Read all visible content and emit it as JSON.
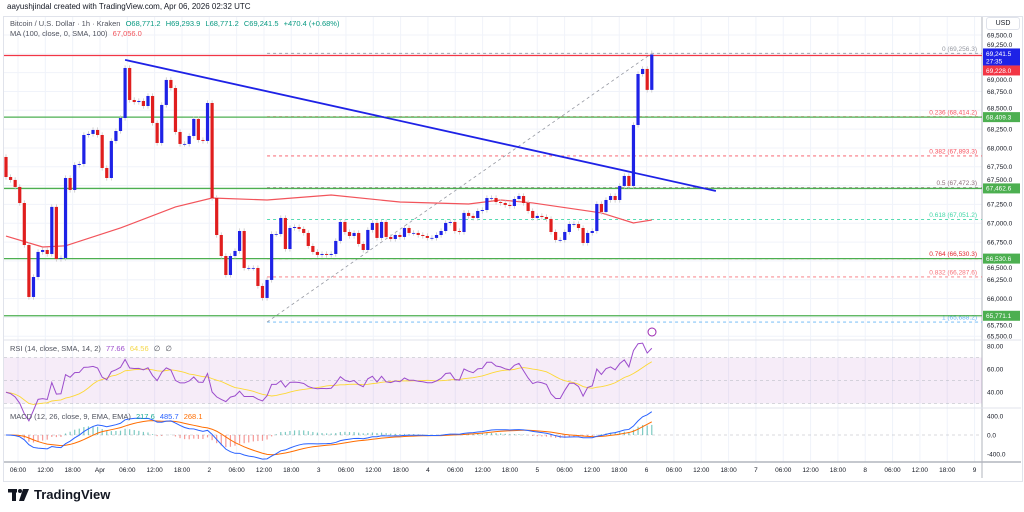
{
  "header": {
    "credit": "aayushjindal created with TradingView.com, Apr 06, 2026 02:32 UTC"
  },
  "legend": {
    "symbol": "Bitcoin / U.S. Dollar · 1h · Kraken",
    "open": "O68,771.2",
    "high": "H69,293.9",
    "low": "L68,771.2",
    "close": "C69,241.5",
    "change": "+470.4 (+0.68%)",
    "ma_label": "MA (100, close, 0, SMA, 100)",
    "ma_value": "67,056.0",
    "rsi_label": "RSI (14, close, SMA, 14, 2)",
    "rsi_value": "77.66",
    "rsi_sma": "64.56",
    "rsi_extra1": "∅",
    "rsi_extra2": "∅",
    "macd_label": "MACD (12, 26, close, 9, EMA, EMA)",
    "macd_hist": "217.6",
    "macd_value": "485.7",
    "macd_signal": "268.1"
  },
  "currency": "USD",
  "logo": "TradingView",
  "colors": {
    "up": "#1e22e6",
    "down": "#e01e1e",
    "ma": "#f2545b",
    "trendline": "#1e22e6",
    "support": "#4caf50",
    "resistance": "#f23645",
    "rsi": "#9c4dcc",
    "rsi_sma": "#fdd835",
    "macd": "#2962ff",
    "signal": "#ff6d00"
  },
  "chart_data": {
    "type": "candlestick",
    "interval": "1h",
    "first_open": 67880,
    "closes": [
      67614,
      67575,
      67482,
      67269,
      66711,
      66021,
      66286,
      66619,
      66645,
      66592,
      67217,
      66526,
      66539,
      67601,
      67442,
      67774,
      67787,
      68172,
      68186,
      68239,
      68172,
      67734,
      67601,
      68093,
      68225,
      68398,
      69062,
      68637,
      68610,
      68624,
      68557,
      68690,
      68332,
      68066,
      68571,
      68903,
      68796,
      68212,
      68053,
      68053,
      68159,
      68385,
      68106,
      68093,
      68597,
      67335,
      66844,
      66565,
      66313,
      66565,
      66632,
      66897,
      66406,
      66406,
      66406,
      66167,
      66008,
      66247,
      66857,
      66857,
      67070,
      66658,
      66937,
      66950,
      66924,
      66871,
      66698,
      66619,
      66579,
      66592,
      66579,
      66592,
      66765,
      67017,
      66884,
      66831,
      66871,
      66725,
      66645,
      66911,
      67004,
      66805,
      67017,
      66818,
      66791,
      66844,
      66818,
      66937,
      66871,
      66871,
      66844,
      66831,
      66805,
      66805,
      66844,
      66897,
      67004,
      67017,
      66897,
      66884,
      67137,
      67097,
      67070,
      67163,
      67176,
      67335,
      67335,
      67282,
      67269,
      67243,
      67229,
      67322,
      67362,
      67269,
      67163,
      67070,
      67097,
      67083,
      67057,
      66884,
      66778,
      66778,
      66884,
      66990,
      66990,
      66937,
      66738,
      66871,
      66897,
      67256,
      67150,
      67309,
      67362,
      67309,
      67495,
      67628,
      67495,
      68305,
      68982,
      69049,
      68771.2,
      69241.5
    ],
    "last_high": 69293.9,
    "ma100_points": [
      [
        0,
        66830
      ],
      [
        8,
        66685
      ],
      [
        13,
        66700
      ],
      [
        25,
        66937
      ],
      [
        37,
        67217
      ],
      [
        45,
        67335
      ],
      [
        57,
        67309
      ],
      [
        71,
        67375
      ],
      [
        86,
        67282
      ],
      [
        101,
        67256
      ],
      [
        108,
        67309
      ],
      [
        115,
        67270
      ],
      [
        130,
        67137
      ],
      [
        137,
        67004
      ],
      [
        141,
        67043
      ]
    ],
    "trendline": {
      "start": [
        26,
        69170
      ],
      "end": [
        155,
        67429
      ]
    },
    "fib_anchor": {
      "start": [
        57,
        65688.2
      ],
      "end": [
        141,
        69256.3
      ]
    },
    "fib_levels": [
      {
        "label": "0 (69,256.3)",
        "value": 69256.3,
        "color": "#9598a1"
      },
      {
        "label": "0.236 (68,414.2)",
        "value": 68414.2,
        "color": "#f7525f"
      },
      {
        "label": "0.382 (67,893.3)",
        "value": 67893.3,
        "color": "#f7525f"
      },
      {
        "label": "0.5 (67,472.3)",
        "value": 67472.3,
        "color": "#8d6e7a"
      },
      {
        "label": "0.618 (67,051.2)",
        "value": 67051.2,
        "color": "#3fd6a6"
      },
      {
        "label": "0.764 (66,530.3)",
        "value": 66530.3,
        "color": "#e3242b"
      },
      {
        "label": "0.832 (66,287.6)",
        "value": 66287.6,
        "color": "#f7727a"
      },
      {
        "label": "1 (65,688.2)",
        "value": 65688.2,
        "color": "#64b5f6"
      }
    ],
    "horizontal_lines": [
      {
        "value": 69228.0,
        "label": "69,228.0",
        "color": "#f23645"
      },
      {
        "value": 68409.3,
        "label": "68,409.3",
        "color": "#4caf50"
      },
      {
        "value": 67462.6,
        "label": "67,462.6",
        "color": "#4caf50"
      },
      {
        "value": 66530.6,
        "label": "66,530.6",
        "color": "#4caf50"
      },
      {
        "value": 65771.1,
        "label": "65,771.1",
        "color": "#4caf50"
      }
    ],
    "last_price": {
      "value": 69241.5,
      "label": "69,241.5",
      "countdown": "27:35"
    },
    "y_range": [
      65350,
      69750
    ],
    "price_ticks": [
      "69,500.0",
      "69,250.0",
      "69,000.0",
      "68,750.0",
      "68,500.0",
      "68,250.0",
      "68,000.0",
      "67,750.0",
      "67,500.0",
      "67,250.0",
      "67,000.0",
      "66,750.0",
      "66,500.0",
      "66,250.0",
      "66,000.0",
      "65,750.0",
      "65,500.0"
    ],
    "rsi_ticks": [
      "80.00",
      "60.00",
      "40.00"
    ],
    "macd_ticks": [
      "400.0",
      "0.0",
      "-400.0"
    ],
    "x_ticks": [
      "06:00",
      "12:00",
      "18:00",
      "Apr",
      "06:00",
      "12:00",
      "18:00",
      "2",
      "06:00",
      "12:00",
      "18:00",
      "3",
      "06:00",
      "12:00",
      "18:00",
      "4",
      "06:00",
      "12:00",
      "18:00",
      "5",
      "06:00",
      "12:00",
      "18:00",
      "6",
      "06:00",
      "12:00",
      "18:00",
      "7",
      "06:00",
      "12:00",
      "18:00",
      "8",
      "06:00",
      "12:00",
      "18:00",
      "9"
    ]
  }
}
